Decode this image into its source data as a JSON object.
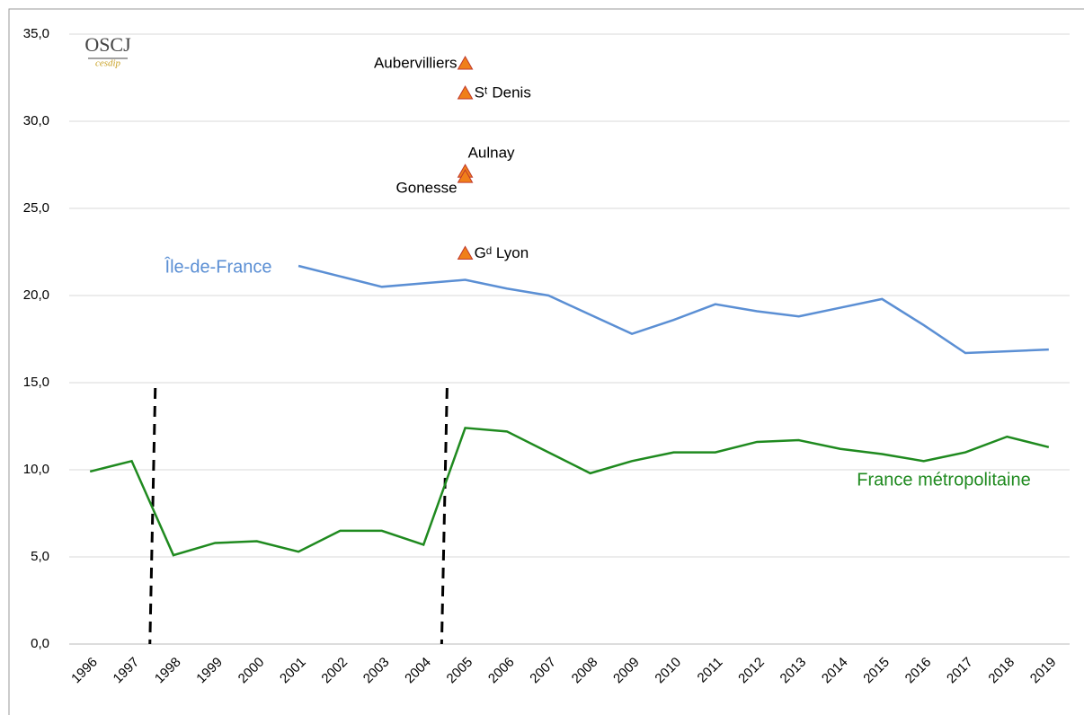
{
  "chart_data": {
    "type": "line",
    "logo": {
      "title": "OSCJ",
      "subtitle": "cesdip"
    },
    "categories": [
      "1996",
      "1997",
      "1998",
      "1999",
      "2000",
      "2001",
      "2002",
      "2003",
      "2004",
      "2005",
      "2006",
      "2007",
      "2008",
      "2009",
      "2010",
      "2011",
      "2012",
      "2013",
      "2014",
      "2015",
      "2016",
      "2017",
      "2018",
      "2019"
    ],
    "series": [
      {
        "name": "Île-de-France",
        "color": "#5b8fd4",
        "values": [
          null,
          null,
          null,
          null,
          null,
          21.7,
          21.1,
          20.5,
          20.7,
          20.9,
          20.4,
          20.0,
          18.9,
          17.8,
          18.6,
          19.5,
          19.1,
          18.8,
          19.3,
          19.8,
          18.3,
          16.7,
          16.8,
          16.9
        ]
      },
      {
        "name": "France métropolitaine",
        "color": "#1f8a1f",
        "values": [
          9.9,
          10.5,
          5.1,
          5.8,
          5.9,
          5.3,
          6.5,
          6.5,
          5.7,
          12.4,
          12.2,
          11.0,
          9.8,
          10.5,
          11.0,
          11.0,
          11.6,
          11.7,
          11.2,
          10.9,
          10.5,
          11.0,
          11.9,
          11.3
        ]
      }
    ],
    "points": [
      {
        "label": "Aubervilliers",
        "x": "2005",
        "value": 33.3
      },
      {
        "label": "Sᵗ Denis",
        "x": "2005",
        "value": 31.6
      },
      {
        "label": "Aulnay",
        "x": "2005",
        "value": 27.1
      },
      {
        "label": "Gonesse",
        "x": "2005",
        "value": 26.8
      },
      {
        "label": "Gᵈ Lyon",
        "x": "2005",
        "value": 22.4
      }
    ],
    "point_color": "#f07f1a",
    "ylim": [
      0,
      35
    ],
    "yticks": [
      {
        "value": 0,
        "label": "0,0"
      },
      {
        "value": 5,
        "label": "5,0"
      },
      {
        "value": 10,
        "label": "10,0"
      },
      {
        "value": 15,
        "label": "15,0"
      },
      {
        "value": 20,
        "label": "20,0"
      },
      {
        "value": 25,
        "label": "25,0"
      },
      {
        "value": 30,
        "label": "30,0"
      },
      {
        "value": 35,
        "label": "35,0"
      }
    ],
    "grid": true
  }
}
